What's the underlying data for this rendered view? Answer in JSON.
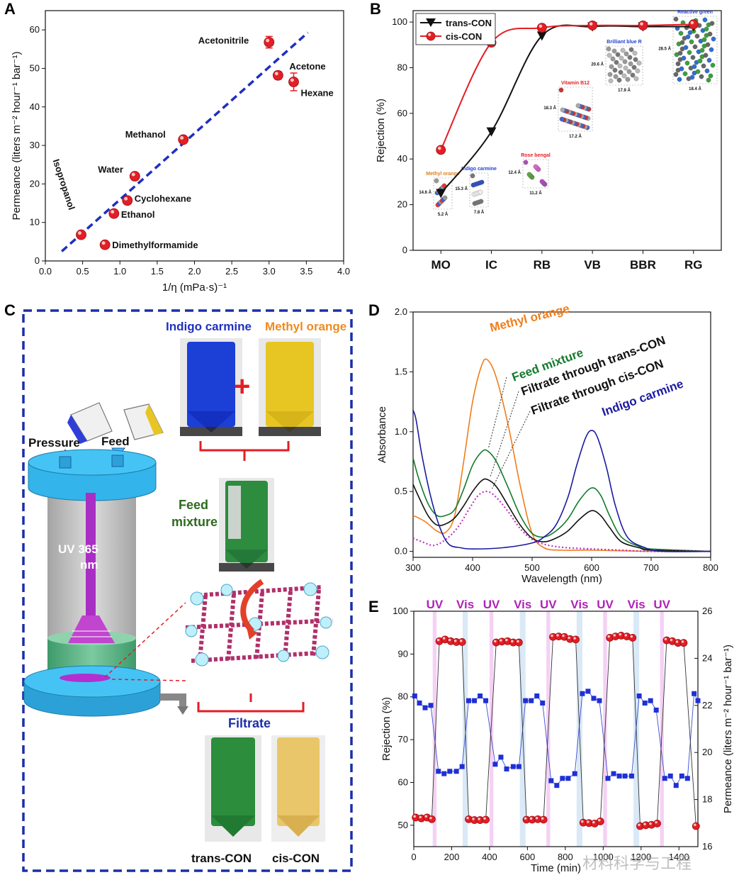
{
  "panels": {
    "A": "A",
    "B": "B",
    "C": "C",
    "D": "D",
    "E": "E"
  },
  "colors": {
    "red": "#e31e24",
    "blue": "#1f2fbf",
    "navy": "#1a1aa0",
    "green": "#137a2c",
    "orange": "#f07d1b",
    "magenta": "#c233c8",
    "ink": "#111111"
  },
  "chart_data": [
    {
      "panel": "A",
      "type": "scatter",
      "xlabel": "1/η (mPa·s)⁻¹",
      "ylabel": "Permeance (liters m⁻² hour⁻¹ bar⁻¹)",
      "xlim": [
        0.0,
        4.0
      ],
      "ylim": [
        0,
        65
      ],
      "xticks": [
        "0.0",
        "0.5",
        "1.0",
        "1.5",
        "2.0",
        "2.5",
        "3.0",
        "3.5",
        "4.0"
      ],
      "yticks": [
        "0",
        "10",
        "20",
        "30",
        "40",
        "50",
        "60"
      ],
      "points": [
        {
          "label": "Isopropanol",
          "x": 0.48,
          "y": 6.8
        },
        {
          "label": "Dimethylformamide",
          "x": 0.8,
          "y": 4.2
        },
        {
          "label": "Ethanol",
          "x": 0.92,
          "y": 12.3
        },
        {
          "label": "Cyclohexane",
          "x": 1.1,
          "y": 15.7
        },
        {
          "label": "Water",
          "x": 1.2,
          "y": 22.0
        },
        {
          "label": "Methanol",
          "x": 1.85,
          "y": 31.5
        },
        {
          "label": "Acetonitrile",
          "x": 3.0,
          "y": 56.8,
          "err": 1.5
        },
        {
          "label": "Acetone",
          "x": 3.12,
          "y": 48.2,
          "err": 1.0
        },
        {
          "label": "Hexane",
          "x": 3.33,
          "y": 46.5,
          "err": 2.3
        }
      ],
      "fit_line": {
        "x": [
          0.22,
          3.52
        ],
        "y": [
          2.5,
          59.3
        ]
      }
    },
    {
      "panel": "B",
      "type": "line",
      "categories": [
        "MO",
        "IC",
        "RB",
        "VB",
        "BBR",
        "RG"
      ],
      "ylabel": "Rejection (%)",
      "ylim": [
        0,
        105
      ],
      "yticks": [
        "0",
        "20",
        "40",
        "60",
        "80",
        "100"
      ],
      "series": [
        {
          "name": "trans-CON",
          "marker": "triangle",
          "values": [
            25,
            52,
            94,
            98,
            98,
            98
          ]
        },
        {
          "name": "cis-CON",
          "marker": "circle",
          "values": [
            44,
            91,
            97.5,
            98.5,
            98.5,
            99
          ]
        }
      ],
      "molecules": [
        {
          "name": "Methyl orange",
          "dims": [
            "14.6 Å",
            "5.2 Å"
          ]
        },
        {
          "name": "Indigo carmine",
          "dims": [
            "15.3 Å",
            "7.8 Å"
          ]
        },
        {
          "name": "Rose bengal",
          "dims": [
            "12.4 Å",
            "11.2 Å"
          ]
        },
        {
          "name": "Vitamin B12",
          "dims": [
            "18.3 Å",
            "17.2 Å"
          ]
        },
        {
          "name": "Brilliant blue R",
          "dims": [
            "20.6 Å",
            "17.9 Å"
          ]
        },
        {
          "name": "Reactive green",
          "dims": [
            "28.5 Å",
            "18.4 Å"
          ]
        }
      ]
    },
    {
      "panel": "D",
      "type": "line",
      "xlabel": "Wavelength (nm)",
      "ylabel": "Absorbance",
      "xlim": [
        300,
        800
      ],
      "ylim": [
        -0.05,
        2.0
      ],
      "xticks": [
        "300",
        "400",
        "500",
        "600",
        "700",
        "800"
      ],
      "yticks": [
        "0.0",
        "0.5",
        "1.0",
        "1.5",
        "2.0"
      ],
      "series": [
        {
          "name": "Methyl orange",
          "x": [
            300,
            320,
            340,
            355,
            370,
            385,
            400,
            415,
            425,
            440,
            460,
            480,
            500,
            520,
            550,
            600,
            700,
            800
          ],
          "y": [
            0.3,
            0.25,
            0.17,
            0.16,
            0.3,
            0.75,
            1.25,
            1.55,
            1.6,
            1.45,
            1.05,
            0.55,
            0.15,
            0.03,
            0.01,
            0.01,
            0.0,
            0.0
          ]
        },
        {
          "name": "Feed mixture",
          "x": [
            300,
            310,
            325,
            340,
            355,
            370,
            385,
            400,
            415,
            425,
            440,
            460,
            480,
            500,
            520,
            540,
            560,
            580,
            600,
            615,
            630,
            650,
            680,
            700,
            800
          ],
          "y": [
            0.78,
            0.6,
            0.4,
            0.3,
            0.3,
            0.35,
            0.52,
            0.72,
            0.83,
            0.84,
            0.75,
            0.53,
            0.3,
            0.15,
            0.12,
            0.17,
            0.27,
            0.43,
            0.53,
            0.47,
            0.3,
            0.12,
            0.04,
            0.02,
            0.0
          ]
        },
        {
          "name": "Filtrate through trans-CON",
          "x": [
            300,
            310,
            325,
            340,
            355,
            370,
            385,
            400,
            415,
            425,
            440,
            460,
            480,
            500,
            520,
            540,
            560,
            580,
            600,
            615,
            630,
            650,
            680,
            700,
            800
          ],
          "y": [
            0.56,
            0.45,
            0.3,
            0.22,
            0.23,
            0.28,
            0.38,
            0.5,
            0.59,
            0.6,
            0.54,
            0.38,
            0.22,
            0.11,
            0.08,
            0.11,
            0.17,
            0.27,
            0.34,
            0.3,
            0.2,
            0.08,
            0.03,
            0.01,
            0.0
          ]
        },
        {
          "name": "Filtrate through cis-CON",
          "x": [
            300,
            315,
            335,
            355,
            375,
            395,
            410,
            425,
            440,
            460,
            480,
            500,
            520,
            540,
            560,
            600,
            650,
            700,
            800
          ],
          "y": [
            0.11,
            0.08,
            0.05,
            0.1,
            0.2,
            0.36,
            0.47,
            0.5,
            0.45,
            0.33,
            0.19,
            0.1,
            0.06,
            0.04,
            0.03,
            0.02,
            0.01,
            0.0,
            0.0
          ]
        },
        {
          "name": "Indigo carmine",
          "x": [
            300,
            305,
            315,
            330,
            345,
            360,
            380,
            400,
            450,
            500,
            520,
            540,
            560,
            575,
            590,
            600,
            610,
            625,
            640,
            660,
            690,
            720,
            800
          ],
          "y": [
            1.18,
            1.1,
            0.8,
            0.45,
            0.2,
            0.06,
            0.03,
            0.02,
            0.03,
            0.07,
            0.12,
            0.22,
            0.45,
            0.72,
            0.95,
            1.01,
            0.95,
            0.7,
            0.38,
            0.12,
            0.03,
            0.0,
            0.0
          ]
        }
      ]
    },
    {
      "panel": "E",
      "type": "scatter",
      "xlabel": "Time (min)",
      "ylabel": "Rejection (%)",
      "y2label": "Permeance (liters m⁻² hour⁻¹ bar⁻¹)",
      "xlim": [
        0,
        1500
      ],
      "ylim": [
        45,
        100
      ],
      "y2lim": [
        16,
        26
      ],
      "xticks": [
        "0",
        "200",
        "400",
        "600",
        "800",
        "1000",
        "1200",
        "1400"
      ],
      "yticks": [
        "50",
        "60",
        "70",
        "80",
        "90",
        "100"
      ],
      "y2ticks": [
        "16",
        "18",
        "20",
        "22",
        "24",
        "26"
      ],
      "bands": [
        {
          "label": "UV",
          "x": [
            100,
            120
          ]
        },
        {
          "label": "Vis",
          "x": [
            258,
            285
          ]
        },
        {
          "label": "UV",
          "x": [
            400,
            420
          ]
        },
        {
          "label": "Vis",
          "x": [
            560,
            590
          ]
        },
        {
          "label": "UV",
          "x": [
            700,
            720
          ]
        },
        {
          "label": "Vis",
          "x": [
            860,
            890
          ]
        },
        {
          "label": "UV",
          "x": [
            1000,
            1020
          ]
        },
        {
          "label": "Vis",
          "x": [
            1160,
            1190
          ]
        },
        {
          "label": "UV",
          "x": [
            1300,
            1320
          ]
        }
      ],
      "series": [
        {
          "name": "Rejection",
          "axis": "left",
          "marker": "circle",
          "x": [
            10,
            40,
            70,
            95,
            135,
            165,
            195,
            225,
            255,
            290,
            320,
            350,
            380,
            435,
            465,
            495,
            525,
            555,
            595,
            625,
            655,
            685,
            735,
            765,
            795,
            825,
            855,
            895,
            925,
            955,
            985,
            1035,
            1065,
            1095,
            1125,
            1155,
            1195,
            1225,
            1255,
            1285,
            1335,
            1365,
            1395,
            1425,
            1490
          ],
          "y": [
            51.8,
            51.6,
            51.8,
            51.4,
            93.0,
            93.4,
            93.0,
            92.8,
            92.8,
            51.4,
            51.2,
            51.2,
            51.3,
            92.7,
            92.9,
            93.0,
            92.7,
            92.7,
            51.3,
            51.3,
            51.4,
            51.3,
            94.0,
            94.1,
            94.0,
            93.5,
            93.4,
            50.6,
            50.5,
            50.4,
            50.9,
            93.8,
            94.1,
            94.3,
            94.1,
            93.8,
            49.8,
            50.0,
            50.1,
            50.4,
            93.2,
            93.0,
            92.6,
            92.6,
            49.8
          ]
        },
        {
          "name": "Permeance",
          "axis": "right",
          "marker": "square",
          "x": [
            5,
            30,
            60,
            90,
            130,
            160,
            190,
            225,
            255,
            290,
            320,
            350,
            380,
            430,
            460,
            490,
            525,
            555,
            590,
            620,
            650,
            680,
            725,
            755,
            785,
            815,
            850,
            890,
            920,
            950,
            980,
            1025,
            1055,
            1085,
            1115,
            1150,
            1190,
            1220,
            1250,
            1280,
            1325,
            1355,
            1385,
            1415,
            1445,
            1480,
            1500
          ],
          "y": [
            22.4,
            22.1,
            21.9,
            22.0,
            19.2,
            19.1,
            19.2,
            19.2,
            19.4,
            22.2,
            22.2,
            22.4,
            22.2,
            19.5,
            19.8,
            19.3,
            19.4,
            19.4,
            22.2,
            22.2,
            22.4,
            22.1,
            18.8,
            18.6,
            18.9,
            18.9,
            19.1,
            22.5,
            22.6,
            22.3,
            22.2,
            18.9,
            19.1,
            19.0,
            19.0,
            19.0,
            22.4,
            22.1,
            22.2,
            21.8,
            18.9,
            19.0,
            18.6,
            19.0,
            18.9,
            22.5,
            22.2
          ]
        }
      ]
    }
  ],
  "schematic": {
    "indigo_title": "Indigo carmine",
    "mo_title": "Methyl orange",
    "plus": "+",
    "pressure": "Pressure",
    "feed": "Feed",
    "uv_line1": "UV 365",
    "uv_line2": "nm",
    "feed_mix_line1": "Feed",
    "feed_mix_line2": "mixture",
    "filtrate": "Filtrate",
    "trans_label": "trans-CON",
    "cis_label": "cis-CON"
  },
  "watermark": "材料科学与工程"
}
